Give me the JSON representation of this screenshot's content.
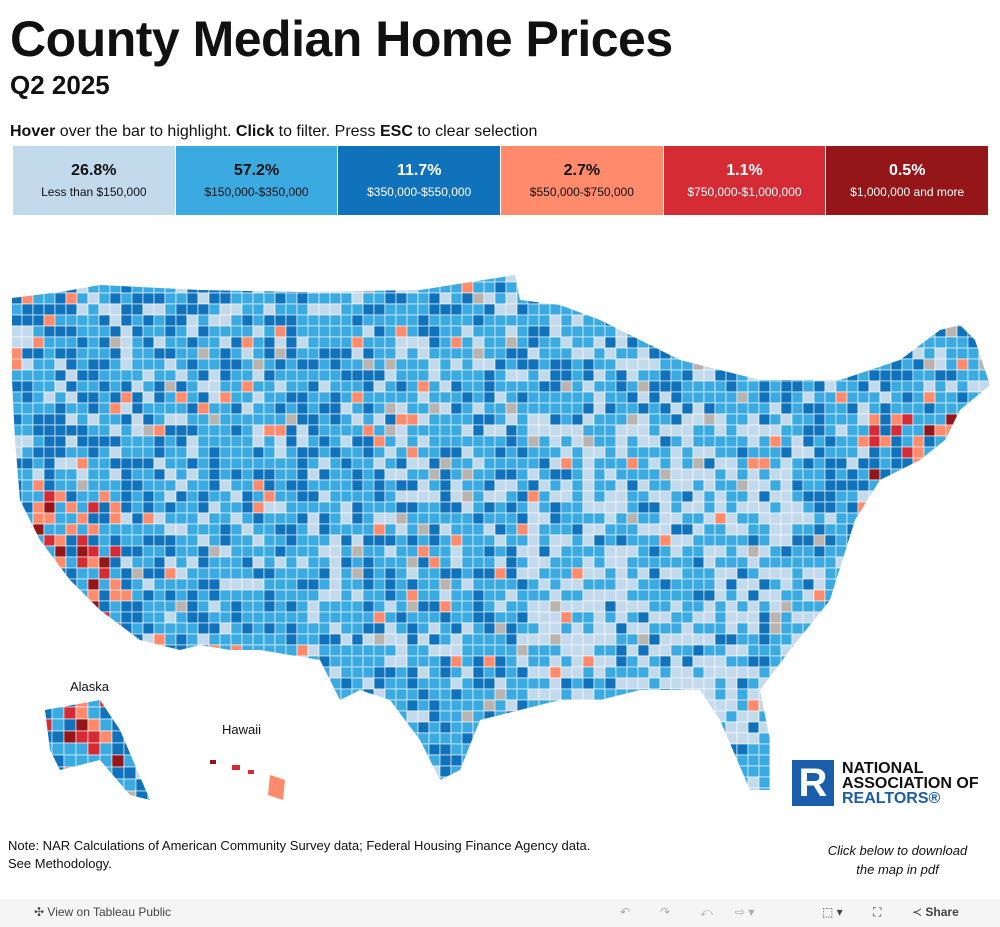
{
  "header": {
    "title": "County Median Home Prices",
    "subtitle": "Q2 2025"
  },
  "instructions": {
    "hover": "Hover",
    "t1": " over the bar to highlight. ",
    "click": "Click",
    "t2": " to filter. Press ",
    "esc": "ESC",
    "t3": " to clear selection"
  },
  "legend": [
    {
      "pct": "26.8%",
      "range": "Less than $150,000",
      "color": "#c3d9ec",
      "text": "#111"
    },
    {
      "pct": "57.2%",
      "range": "$150,000-$350,000",
      "color": "#3aaae1",
      "text": "#111"
    },
    {
      "pct": "11.7%",
      "range": "$350,000-$550,000",
      "color": "#1172bc",
      "text": "#fff"
    },
    {
      "pct": "2.7%",
      "range": "$550,000-$750,000",
      "color": "#ff8a6c",
      "text": "#111"
    },
    {
      "pct": "1.1%",
      "range": "$750,000-$1,000,000",
      "color": "#d42b35",
      "text": "#fff"
    },
    {
      "pct": "0.5%",
      "range": "$1,000,000 and more",
      "color": "#951619",
      "text": "#fff"
    }
  ],
  "map": {
    "labels": {
      "alaska": "Alaska",
      "hawaii": "Hawaii"
    },
    "no_data_color": "#b9b4b0"
  },
  "note": {
    "line1": "Note: NAR Calculations of American Community Survey data; Federal Housing Finance Agency data.",
    "line2": "See Methodology."
  },
  "download": "Click below to download the map in pdf",
  "logo": {
    "mark": "R",
    "line1": "NATIONAL",
    "line2": "ASSOCIATION OF",
    "line3": "REALTORS®"
  },
  "toolbar": {
    "view": "View on Tableau Public",
    "share": "Share"
  }
}
